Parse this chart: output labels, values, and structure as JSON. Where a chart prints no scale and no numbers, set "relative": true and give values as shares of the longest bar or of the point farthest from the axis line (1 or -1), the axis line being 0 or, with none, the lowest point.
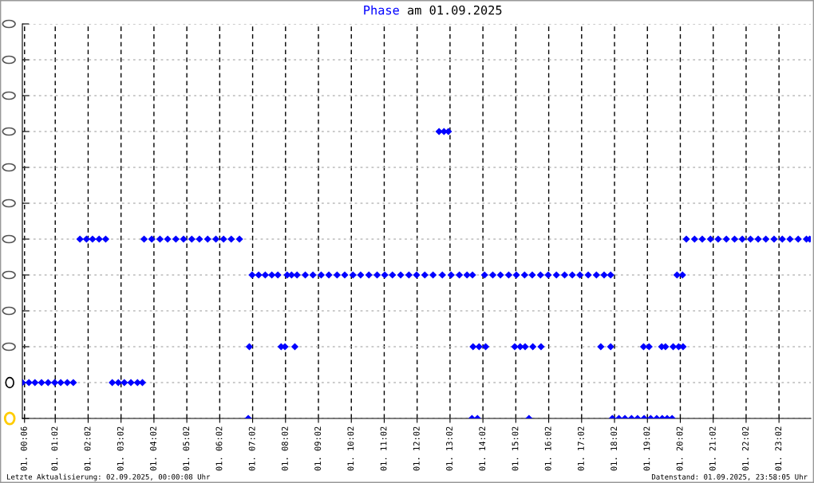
{
  "chart_data": {
    "type": "scatter",
    "title": "Phase am 01.09.2025",
    "relative": true,
    "marker": "diamond",
    "grid": true,
    "tick_labels": "x",
    "xlim": [
      "2025-09-01T00:02",
      "2025-09-02T00:00"
    ],
    "xticks": [
      {
        "value": "2025-09-01T00:06",
        "label": "01. 00:06"
      },
      {
        "value": "2025-09-01T01:02",
        "label": "01. 01:02"
      },
      {
        "value": "2025-09-01T02:02",
        "label": "01. 02:02"
      },
      {
        "value": "2025-09-01T03:02",
        "label": "01. 03:02"
      },
      {
        "value": "2025-09-01T04:02",
        "label": "01. 04:02"
      },
      {
        "value": "2025-09-01T05:02",
        "label": "01. 05:02"
      },
      {
        "value": "2025-09-01T06:02",
        "label": "01. 06:02"
      },
      {
        "value": "2025-09-01T07:02",
        "label": "01. 07:02"
      },
      {
        "value": "2025-09-01T08:02",
        "label": "01. 08:02"
      },
      {
        "value": "2025-09-01T09:02",
        "label": "01. 09:02"
      },
      {
        "value": "2025-09-01T10:02",
        "label": "01. 10:02"
      },
      {
        "value": "2025-09-01T11:02",
        "label": "01. 11:02"
      },
      {
        "value": "2025-09-01T12:02",
        "label": "01. 12:02"
      },
      {
        "value": "2025-09-01T13:02",
        "label": "01. 13:02"
      },
      {
        "value": "2025-09-01T14:02",
        "label": "01. 14:02"
      },
      {
        "value": "2025-09-01T15:02",
        "label": "01. 15:02"
      },
      {
        "value": "2025-09-01T16:02",
        "label": "01. 16:02"
      },
      {
        "value": "2025-09-01T17:02",
        "label": "01. 17:02"
      },
      {
        "value": "2025-09-01T18:02",
        "label": "01. 18:02"
      },
      {
        "value": "2025-09-01T19:02",
        "label": "01. 19:02"
      },
      {
        "value": "2025-09-01T20:02",
        "label": "01. 20:02"
      },
      {
        "value": "2025-09-01T21:02",
        "label": "01. 21:02"
      },
      {
        "value": "2025-09-01T22:02",
        "label": "01. 22:02"
      },
      {
        "value": "2025-09-01T23:02",
        "label": "01. 23:02"
      }
    ],
    "series": [
      {
        "color": "#0000ff",
        "x": [
          "2025-09-01T00:02",
          "2025-09-01T00:14",
          "2025-09-01T00:25",
          "2025-09-01T00:37",
          "2025-09-01T00:49",
          "2025-09-01T01:01",
          "2025-09-01T01:12",
          "2025-09-01T01:24",
          "2025-09-01T01:35",
          "2025-09-01T01:47",
          "2025-09-01T01:59",
          "2025-09-01T02:10",
          "2025-09-01T02:22",
          "2025-09-01T02:34",
          "2025-09-01T02:46",
          "2025-09-01T02:57",
          "2025-09-01T03:08",
          "2025-09-01T03:20",
          "2025-09-01T03:32",
          "2025-09-01T03:41",
          "2025-09-01T03:44",
          "2025-09-01T03:58",
          "2025-09-01T04:13",
          "2025-09-01T04:27",
          "2025-09-01T04:42",
          "2025-09-01T04:56",
          "2025-09-01T05:11",
          "2025-09-01T05:25",
          "2025-09-01T05:40",
          "2025-09-01T05:55",
          "2025-09-01T06:09",
          "2025-09-01T06:23",
          "2025-09-01T06:38",
          "2025-09-01T06:54",
          "2025-09-01T06:56",
          "2025-09-01T07:01",
          "2025-09-01T07:13",
          "2025-09-01T07:25",
          "2025-09-01T07:37",
          "2025-09-01T07:48",
          "2025-09-01T07:54",
          "2025-09-01T08:01",
          "2025-09-01T08:05",
          "2025-09-01T08:13",
          "2025-09-01T08:19",
          "2025-09-01T08:23",
          "2025-09-01T08:38",
          "2025-09-01T08:52",
          "2025-09-01T09:07",
          "2025-09-01T09:21",
          "2025-09-01T09:36",
          "2025-09-01T09:50",
          "2025-09-01T10:05",
          "2025-09-01T10:19",
          "2025-09-01T10:34",
          "2025-09-01T10:49",
          "2025-09-01T11:03",
          "2025-09-01T11:17",
          "2025-09-01T11:32",
          "2025-09-01T11:47",
          "2025-09-01T12:01",
          "2025-09-01T12:16",
          "2025-09-01T12:31",
          "2025-09-01T12:42",
          "2025-09-01T12:48",
          "2025-09-01T12:51",
          "2025-09-01T12:59",
          "2025-09-01T13:04",
          "2025-09-01T13:19",
          "2025-09-01T13:33",
          "2025-09-01T13:42",
          "2025-09-01T13:43",
          "2025-09-01T13:44",
          "2025-09-01T13:52",
          "2025-09-01T13:55",
          "2025-09-01T14:05",
          "2025-09-01T14:07",
          "2025-09-01T14:20",
          "2025-09-01T14:34",
          "2025-09-01T14:49",
          "2025-09-01T15:00",
          "2025-09-01T15:03",
          "2025-09-01T15:10",
          "2025-09-01T15:18",
          "2025-09-01T15:19",
          "2025-09-01T15:26",
          "2025-09-01T15:32",
          "2025-09-01T15:33",
          "2025-09-01T15:47",
          "2025-09-01T15:48",
          "2025-09-01T16:01",
          "2025-09-01T16:16",
          "2025-09-01T16:31",
          "2025-09-01T16:45",
          "2025-09-01T16:59",
          "2025-09-01T17:14",
          "2025-09-01T17:29",
          "2025-09-01T17:37",
          "2025-09-01T17:43",
          "2025-09-01T17:55",
          "2025-09-01T17:55",
          "2025-09-01T17:58",
          "2025-09-01T18:10",
          "2025-09-01T18:21",
          "2025-09-01T18:33",
          "2025-09-01T18:44",
          "2025-09-01T18:55",
          "2025-09-01T18:56",
          "2025-09-01T19:05",
          "2025-09-01T19:08",
          "2025-09-01T19:19",
          "2025-09-01T19:28",
          "2025-09-01T19:29",
          "2025-09-01T19:35",
          "2025-09-01T19:38",
          "2025-09-01T19:47",
          "2025-09-01T19:49",
          "2025-09-01T19:56",
          "2025-09-01T19:59",
          "2025-09-01T20:06",
          "2025-09-01T20:07",
          "2025-09-01T20:13",
          "2025-09-01T20:28",
          "2025-09-01T20:42",
          "2025-09-01T20:57",
          "2025-09-01T21:11",
          "2025-09-01T21:26",
          "2025-09-01T21:41",
          "2025-09-01T21:55",
          "2025-09-01T22:10",
          "2025-09-01T22:24",
          "2025-09-01T22:38",
          "2025-09-01T22:53",
          "2025-09-01T23:08",
          "2025-09-01T23:22",
          "2025-09-01T23:37",
          "2025-09-01T23:52",
          "2025-09-01T23:58"
        ],
        "values": [
          0.125,
          0.125,
          0.125,
          0.125,
          0.125,
          0.125,
          0.125,
          0.125,
          0.125,
          0.625,
          0.625,
          0.625,
          0.625,
          0.625,
          0.125,
          0.125,
          0.125,
          0.125,
          0.125,
          0.125,
          0.625,
          0.625,
          0.625,
          0.625,
          0.625,
          0.625,
          0.625,
          0.625,
          0.625,
          0.625,
          0.625,
          0.625,
          0.625,
          0,
          0.25,
          0.5,
          0.5,
          0.5,
          0.5,
          0.5,
          0.25,
          0.25,
          0.5,
          0.5,
          0.25,
          0.5,
          0.5,
          0.5,
          0.5,
          0.5,
          0.5,
          0.5,
          0.5,
          0.5,
          0.5,
          0.5,
          0.5,
          0.5,
          0.5,
          0.5,
          0.5,
          0.5,
          0.5,
          1,
          0.5,
          1,
          1,
          0.5,
          0.5,
          0.5,
          0,
          0.5,
          0.25,
          0,
          0.25,
          0.5,
          0.25,
          0.5,
          0.5,
          0.5,
          0.25,
          0.5,
          0.25,
          0.5,
          0.25,
          0,
          0.5,
          0.25,
          0.5,
          0.25,
          0.5,
          0.5,
          0.5,
          0.5,
          0.5,
          0.5,
          0.5,
          0.25,
          0.5,
          0.5,
          0.25,
          0,
          0,
          0,
          0,
          0,
          0.25,
          0,
          0.25,
          0,
          0,
          0.25,
          0,
          0.25,
          0,
          0,
          0.25,
          0.5,
          0.25,
          0.5,
          0.25,
          0.625,
          0.625,
          0.625,
          0.625,
          0.625,
          0.625,
          0.625,
          0.625,
          0.625,
          0.625,
          0.625,
          0.625,
          0.625,
          0.625,
          0.625,
          0.625,
          0.625
        ]
      }
    ],
    "annotations": [
      "Letzte Aktualisierung: 02.09.2025, 00:00:08 Uhr",
      "Datenstand: 01.09.2025, 23:58:05 Uhr"
    ]
  }
}
